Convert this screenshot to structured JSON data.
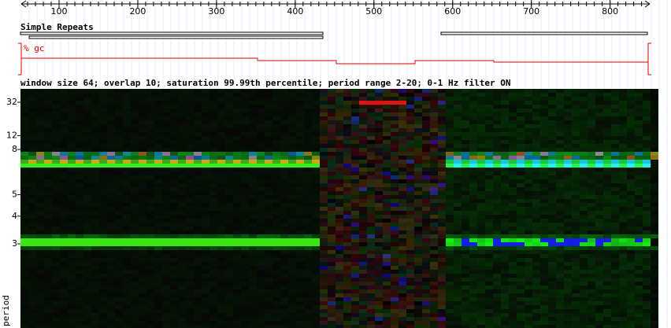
{
  "ruler": {
    "ticks": [
      100,
      200,
      300,
      400,
      500,
      600,
      700,
      800
    ]
  },
  "tracks": {
    "repeats_label": "Simple Repeats",
    "gc_label": "% gc"
  },
  "spectrogram": {
    "caption": "window size 64; overlap 10; saturation 99.99th percentile; period range 2-20; 0-1 Hz filter ON",
    "yticks": [
      {
        "value": 32,
        "label": "32"
      },
      {
        "value": 12,
        "label": "12"
      },
      {
        "value": 8,
        "label": "8"
      },
      {
        "value": 5,
        "label": "5"
      },
      {
        "value": 4,
        "label": "4"
      },
      {
        "value": 3,
        "label": "3"
      }
    ],
    "ylabel": "period"
  }
}
